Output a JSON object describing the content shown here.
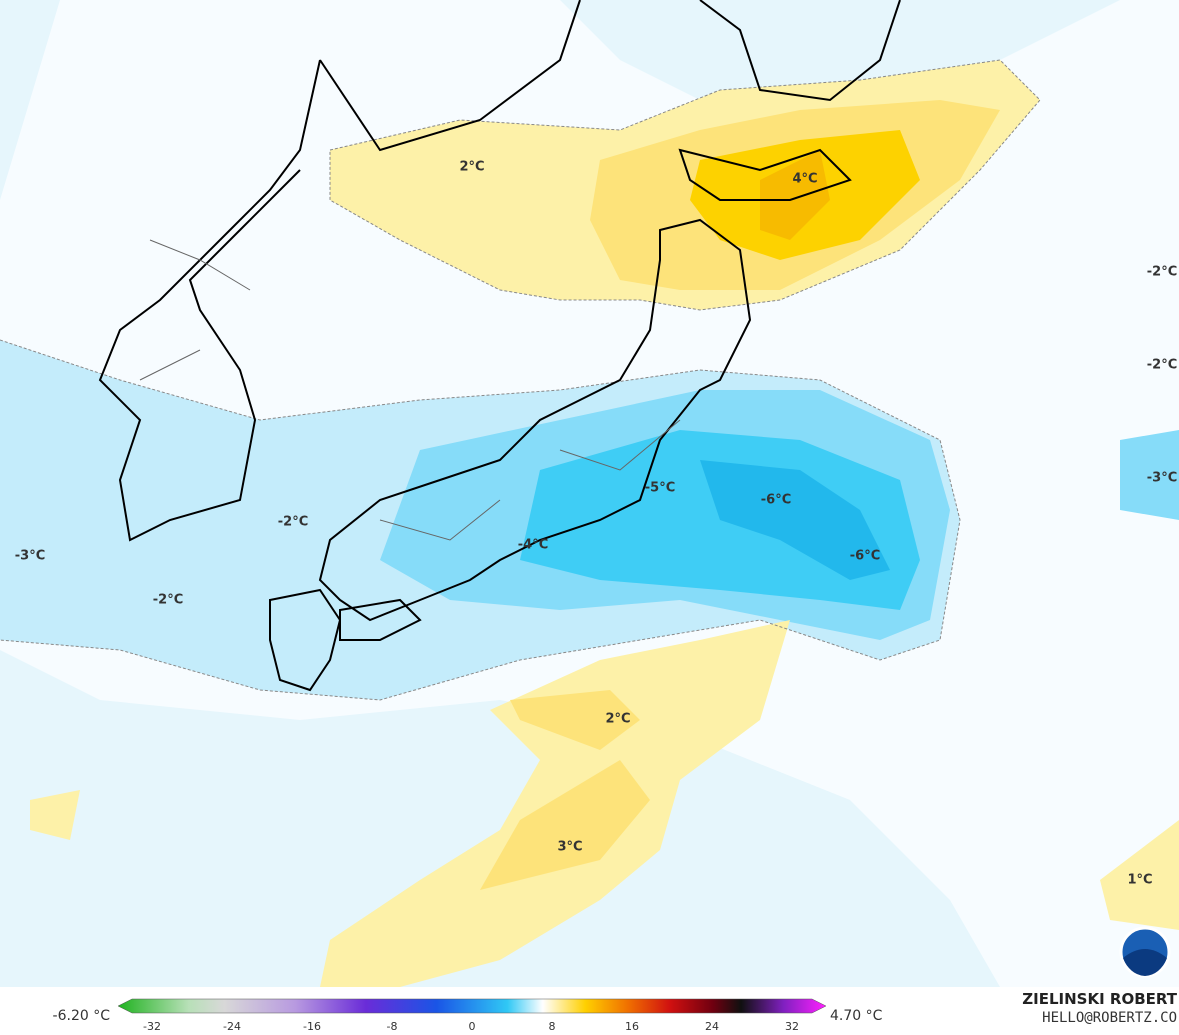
{
  "map": {
    "labels": [
      "2°C",
      "4°C",
      "-2°C",
      "-2°C",
      "-3°C",
      "-5°C",
      "-6°C",
      "-6°C",
      "-2°C",
      "-4°C",
      "-3°C",
      "-2°C",
      "2°C",
      "3°C",
      "1°C"
    ]
  },
  "colorbar": {
    "min_label": "-6.20 °C",
    "max_label": "4.70 °C",
    "ticks": [
      "-32",
      "-24",
      "-16",
      "-8",
      "0",
      "8",
      "16",
      "24",
      "32"
    ]
  },
  "credit": {
    "name": "ZIELINSKI ROBERT",
    "contact": "HELLO@ROBERTZ.CO"
  }
}
